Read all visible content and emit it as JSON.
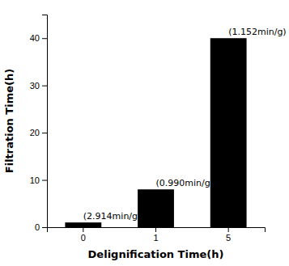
{
  "chart_data": {
    "type": "bar",
    "categories": [
      "0",
      "1",
      "5"
    ],
    "values": [
      1.0,
      8.0,
      40.0
    ],
    "color": "#000000",
    "xlabel": "Delignification Time(h)",
    "ylabel": "Filtration Time(h)",
    "ylim": [
      0,
      45
    ],
    "yticks": [
      0,
      10,
      20,
      30,
      40
    ],
    "grid": false,
    "annotations": [
      {
        "text": "(2.914min/g)",
        "x": "0",
        "y": 1.0
      },
      {
        "text": "(0.990min/g)",
        "x": "1",
        "y": 8.0
      },
      {
        "text": "(1.152min/g)",
        "x": "5",
        "y": 40.0
      }
    ]
  }
}
